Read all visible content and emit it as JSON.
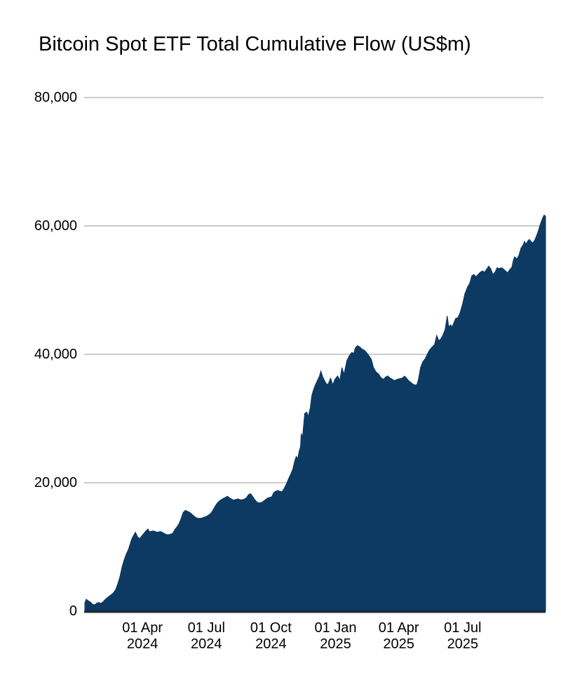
{
  "title": "Bitcoin Spot ETF Total Cumulative Flow (US$m)",
  "colors": {
    "area_fill": "#0c3a62",
    "gridline": "#cbcbcb",
    "axis_line": "#222831",
    "text": "#000000",
    "background": "#ffffff"
  },
  "chart_data": {
    "type": "area",
    "title": "Bitcoin Spot ETF Total Cumulative Flow (US$m)",
    "xlabel": "",
    "ylabel": "",
    "ylim": [
      0,
      80000
    ],
    "grid": "horizontal-only",
    "legend": "none",
    "x_range": [
      "2024-01-10",
      "2025-10-27"
    ],
    "y_ticks": [
      {
        "value": 0,
        "label": "0"
      },
      {
        "value": 20000,
        "label": "20,000"
      },
      {
        "value": 40000,
        "label": "40,000"
      },
      {
        "value": 60000,
        "label": "60,000"
      },
      {
        "value": 80000,
        "label": "80,000"
      }
    ],
    "x_ticks": [
      {
        "date": "2024-04-01",
        "line1": "01 Apr",
        "line2": "2024"
      },
      {
        "date": "2024-07-01",
        "line1": "01 Jul",
        "line2": "2024"
      },
      {
        "date": "2024-10-01",
        "line1": "01 Oct",
        "line2": "2024"
      },
      {
        "date": "2025-01-01",
        "line1": "01 Jan",
        "line2": "2025"
      },
      {
        "date": "2025-04-01",
        "line1": "01 Apr",
        "line2": "2025"
      },
      {
        "date": "2025-07-01",
        "line1": "01 Jul",
        "line2": "2025"
      }
    ],
    "series": [
      {
        "name": "Total Cumulative Flow (US$m)",
        "color": "#0c3a62",
        "points": [
          [
            "2024-01-10",
            1300
          ],
          [
            "2024-01-12",
            1850
          ],
          [
            "2024-01-15",
            1600
          ],
          [
            "2024-01-18",
            1400
          ],
          [
            "2024-01-21",
            1060
          ],
          [
            "2024-01-24",
            980
          ],
          [
            "2024-01-27",
            1250
          ],
          [
            "2024-01-30",
            1350
          ],
          [
            "2024-02-02",
            1200
          ],
          [
            "2024-02-05",
            1450
          ],
          [
            "2024-02-08",
            1800
          ],
          [
            "2024-02-11",
            2100
          ],
          [
            "2024-02-14",
            2350
          ],
          [
            "2024-02-17",
            2600
          ],
          [
            "2024-02-20",
            2900
          ],
          [
            "2024-02-23",
            3400
          ],
          [
            "2024-02-26",
            4300
          ],
          [
            "2024-02-29",
            5400
          ],
          [
            "2024-03-03",
            6900
          ],
          [
            "2024-03-06",
            8000
          ],
          [
            "2024-03-09",
            8900
          ],
          [
            "2024-03-12",
            9600
          ],
          [
            "2024-03-14",
            10300
          ],
          [
            "2024-03-17",
            11300
          ],
          [
            "2024-03-20",
            11900
          ],
          [
            "2024-03-22",
            12300
          ],
          [
            "2024-03-25",
            11600
          ],
          [
            "2024-03-28",
            11300
          ],
          [
            "2024-03-31",
            11700
          ],
          [
            "2024-04-03",
            12100
          ],
          [
            "2024-04-06",
            12500
          ],
          [
            "2024-04-09",
            12800
          ],
          [
            "2024-04-11",
            12350
          ],
          [
            "2024-04-14",
            12450
          ],
          [
            "2024-04-17",
            12500
          ],
          [
            "2024-04-20",
            12350
          ],
          [
            "2024-04-23",
            12300
          ],
          [
            "2024-04-26",
            12400
          ],
          [
            "2024-04-29",
            12300
          ],
          [
            "2024-05-02",
            12100
          ],
          [
            "2024-05-05",
            11950
          ],
          [
            "2024-05-08",
            11900
          ],
          [
            "2024-05-11",
            12000
          ],
          [
            "2024-05-14",
            12100
          ],
          [
            "2024-05-17",
            12700
          ],
          [
            "2024-05-20",
            13100
          ],
          [
            "2024-05-23",
            13600
          ],
          [
            "2024-05-26",
            14400
          ],
          [
            "2024-05-29",
            15350
          ],
          [
            "2024-06-01",
            15700
          ],
          [
            "2024-06-04",
            15550
          ],
          [
            "2024-06-07",
            15400
          ],
          [
            "2024-06-10",
            15150
          ],
          [
            "2024-06-13",
            14850
          ],
          [
            "2024-06-16",
            14600
          ],
          [
            "2024-06-19",
            14450
          ],
          [
            "2024-06-22",
            14450
          ],
          [
            "2024-06-25",
            14500
          ],
          [
            "2024-06-28",
            14650
          ],
          [
            "2024-07-01",
            14750
          ],
          [
            "2024-07-04",
            14950
          ],
          [
            "2024-07-07",
            15200
          ],
          [
            "2024-07-10",
            15650
          ],
          [
            "2024-07-13",
            16250
          ],
          [
            "2024-07-16",
            16750
          ],
          [
            "2024-07-19",
            17100
          ],
          [
            "2024-07-22",
            17350
          ],
          [
            "2024-07-25",
            17550
          ],
          [
            "2024-07-28",
            17700
          ],
          [
            "2024-07-31",
            17900
          ],
          [
            "2024-08-03",
            17650
          ],
          [
            "2024-08-06",
            17450
          ],
          [
            "2024-08-09",
            17300
          ],
          [
            "2024-08-12",
            17400
          ],
          [
            "2024-08-15",
            17500
          ],
          [
            "2024-08-18",
            17350
          ],
          [
            "2024-08-21",
            17350
          ],
          [
            "2024-08-24",
            17450
          ],
          [
            "2024-08-27",
            17650
          ],
          [
            "2024-08-30",
            18150
          ],
          [
            "2024-09-02",
            18300
          ],
          [
            "2024-09-05",
            17850
          ],
          [
            "2024-09-08",
            17350
          ],
          [
            "2024-09-11",
            17000
          ],
          [
            "2024-09-14",
            16850
          ],
          [
            "2024-09-17",
            16900
          ],
          [
            "2024-09-20",
            17100
          ],
          [
            "2024-09-23",
            17350
          ],
          [
            "2024-09-26",
            17600
          ],
          [
            "2024-09-29",
            17700
          ],
          [
            "2024-10-02",
            17800
          ],
          [
            "2024-10-05",
            18450
          ],
          [
            "2024-10-08",
            18700
          ],
          [
            "2024-10-11",
            18800
          ],
          [
            "2024-10-14",
            18650
          ],
          [
            "2024-10-17",
            18600
          ],
          [
            "2024-10-20",
            19150
          ],
          [
            "2024-10-23",
            19800
          ],
          [
            "2024-10-26",
            20600
          ],
          [
            "2024-10-29",
            21300
          ],
          [
            "2024-11-01",
            22100
          ],
          [
            "2024-11-04",
            23500
          ],
          [
            "2024-11-06",
            24100
          ],
          [
            "2024-11-08",
            23700
          ],
          [
            "2024-11-10",
            24900
          ],
          [
            "2024-11-12",
            25600
          ],
          [
            "2024-11-13",
            27600
          ],
          [
            "2024-11-15",
            27200
          ],
          [
            "2024-11-18",
            30800
          ],
          [
            "2024-11-21",
            31000
          ],
          [
            "2024-11-23",
            30300
          ],
          [
            "2024-11-26",
            31700
          ],
          [
            "2024-11-28",
            33500
          ],
          [
            "2024-11-30",
            34300
          ],
          [
            "2024-12-03",
            35200
          ],
          [
            "2024-12-06",
            35900
          ],
          [
            "2024-12-09",
            36600
          ],
          [
            "2024-12-11",
            37400
          ],
          [
            "2024-12-14",
            36400
          ],
          [
            "2024-12-18",
            35550
          ],
          [
            "2024-12-21",
            35250
          ],
          [
            "2024-12-25",
            36300
          ],
          [
            "2024-12-28",
            35250
          ],
          [
            "2024-12-31",
            36100
          ],
          [
            "2025-01-04",
            36650
          ],
          [
            "2025-01-07",
            35950
          ],
          [
            "2025-01-10",
            37950
          ],
          [
            "2025-01-13",
            36900
          ],
          [
            "2025-01-17",
            39000
          ],
          [
            "2025-01-20",
            39700
          ],
          [
            "2025-01-24",
            40300
          ],
          [
            "2025-01-27",
            40150
          ],
          [
            "2025-01-29",
            41000
          ],
          [
            "2025-02-01",
            41350
          ],
          [
            "2025-02-04",
            41200
          ],
          [
            "2025-02-08",
            40800
          ],
          [
            "2025-02-11",
            40650
          ],
          [
            "2025-02-14",
            40300
          ],
          [
            "2025-02-18",
            39700
          ],
          [
            "2025-02-21",
            39200
          ],
          [
            "2025-02-24",
            37950
          ],
          [
            "2025-02-28",
            37200
          ],
          [
            "2025-03-03",
            37000
          ],
          [
            "2025-03-06",
            36450
          ],
          [
            "2025-03-10",
            36100
          ],
          [
            "2025-03-13",
            36450
          ],
          [
            "2025-03-16",
            36650
          ],
          [
            "2025-03-20",
            36300
          ],
          [
            "2025-03-23",
            36100
          ],
          [
            "2025-03-26",
            35900
          ],
          [
            "2025-03-29",
            36100
          ],
          [
            "2025-04-02",
            36200
          ],
          [
            "2025-04-06",
            36300
          ],
          [
            "2025-04-09",
            36600
          ],
          [
            "2025-04-12",
            36300
          ],
          [
            "2025-04-15",
            35900
          ],
          [
            "2025-04-19",
            35550
          ],
          [
            "2025-04-22",
            35300
          ],
          [
            "2025-04-25",
            35200
          ],
          [
            "2025-04-27",
            35350
          ],
          [
            "2025-04-29",
            36100
          ],
          [
            "2025-05-02",
            37950
          ],
          [
            "2025-05-05",
            38800
          ],
          [
            "2025-05-09",
            39400
          ],
          [
            "2025-05-12",
            40100
          ],
          [
            "2025-05-15",
            40700
          ],
          [
            "2025-05-19",
            41200
          ],
          [
            "2025-05-22",
            41550
          ],
          [
            "2025-05-25",
            42950
          ],
          [
            "2025-05-28",
            42100
          ],
          [
            "2025-05-31",
            42450
          ],
          [
            "2025-06-03",
            43050
          ],
          [
            "2025-06-06",
            43900
          ],
          [
            "2025-06-08",
            45300
          ],
          [
            "2025-06-09",
            46000
          ],
          [
            "2025-06-11",
            44300
          ],
          [
            "2025-06-14",
            44600
          ],
          [
            "2025-06-16",
            44250
          ],
          [
            "2025-06-18",
            44800
          ],
          [
            "2025-06-21",
            45600
          ],
          [
            "2025-06-24",
            45700
          ],
          [
            "2025-06-27",
            46400
          ],
          [
            "2025-07-01",
            47900
          ],
          [
            "2025-07-04",
            49400
          ],
          [
            "2025-07-08",
            50500
          ],
          [
            "2025-07-11",
            51050
          ],
          [
            "2025-07-14",
            52250
          ],
          [
            "2025-07-17",
            52450
          ],
          [
            "2025-07-20",
            52100
          ],
          [
            "2025-07-23",
            52450
          ],
          [
            "2025-07-26",
            52800
          ],
          [
            "2025-07-29",
            53000
          ],
          [
            "2025-08-01",
            52800
          ],
          [
            "2025-08-04",
            53250
          ],
          [
            "2025-08-07",
            53750
          ],
          [
            "2025-08-10",
            53300
          ],
          [
            "2025-08-13",
            52450
          ],
          [
            "2025-08-16",
            52800
          ],
          [
            "2025-08-19",
            53500
          ],
          [
            "2025-08-22",
            53350
          ],
          [
            "2025-08-25",
            53500
          ],
          [
            "2025-08-28",
            53300
          ],
          [
            "2025-08-31",
            53000
          ],
          [
            "2025-09-03",
            52700
          ],
          [
            "2025-09-06",
            53200
          ],
          [
            "2025-09-09",
            53550
          ],
          [
            "2025-09-11",
            54600
          ],
          [
            "2025-09-13",
            55200
          ],
          [
            "2025-09-16",
            54850
          ],
          [
            "2025-09-19",
            55400
          ],
          [
            "2025-09-22",
            56550
          ],
          [
            "2025-09-25",
            57050
          ],
          [
            "2025-09-27",
            57600
          ],
          [
            "2025-09-29",
            57150
          ],
          [
            "2025-10-02",
            57700
          ],
          [
            "2025-10-04",
            57900
          ],
          [
            "2025-10-06",
            57600
          ],
          [
            "2025-10-09",
            57350
          ],
          [
            "2025-10-12",
            57900
          ],
          [
            "2025-10-14",
            58450
          ],
          [
            "2025-10-16",
            59000
          ],
          [
            "2025-10-19",
            60100
          ],
          [
            "2025-10-21",
            60700
          ],
          [
            "2025-10-23",
            61300
          ],
          [
            "2025-10-25",
            61700
          ],
          [
            "2025-10-27",
            61500
          ]
        ]
      }
    ]
  }
}
